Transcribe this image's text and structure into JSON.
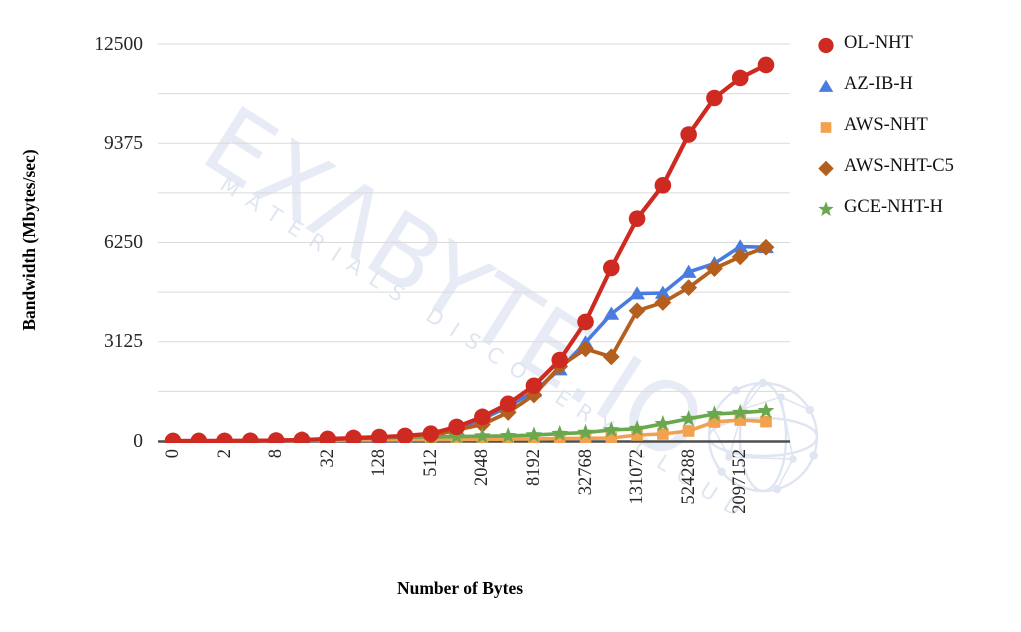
{
  "watermark": {
    "line1": "EXΛBYTE.IO",
    "line2": "MATERIALS DISCOVERY CLOUD"
  },
  "chart_data": {
    "type": "line",
    "title": "",
    "xlabel": "Number of Bytes",
    "ylabel": "Bandwidth (Mbytes/sec)",
    "x_scale": "categorical-power-of-2",
    "categories": [
      0,
      1,
      2,
      4,
      8,
      16,
      32,
      64,
      128,
      256,
      512,
      1024,
      2048,
      4096,
      8192,
      16384,
      32768,
      65536,
      131072,
      262144,
      524288,
      1048576,
      2097152,
      4194304
    ],
    "x_tick_labels": [
      "0",
      "2",
      "8",
      "32",
      "128",
      "512",
      "2048",
      "8192",
      "32768",
      "131072",
      "524288",
      "2097152"
    ],
    "x_tick_indices": [
      0,
      2,
      4,
      6,
      8,
      10,
      12,
      14,
      16,
      18,
      20,
      22
    ],
    "y_ticks": [
      0,
      3125,
      6250,
      9375,
      12500
    ],
    "y_tick_labels": [
      "0",
      "3125",
      "6250",
      "9375",
      "12500"
    ],
    "y_minor_gridline_step": 1562.5,
    "ylim": [
      0,
      12500
    ],
    "grid": true,
    "legend_position": "right",
    "colors": {
      "grid": "#dadada",
      "axis": "#4f4f4f",
      "watermark": "#e2e8f3"
    },
    "series": [
      {
        "name": "OL-NHT",
        "color": "#cf2a21",
        "marker": "circle",
        "values": [
          1,
          2,
          4,
          8,
          16,
          32,
          64,
          95,
          125,
          160,
          230,
          445,
          760,
          1170,
          1740,
          2550,
          3750,
          5450,
          7000,
          8050,
          9650,
          10800,
          11430,
          11840
        ]
      },
      {
        "name": "AZ-IB-H",
        "color": "#4a7ce0",
        "marker": "triangle",
        "values": [
          1,
          2,
          4,
          8,
          15,
          30,
          55,
          85,
          110,
          130,
          160,
          380,
          690,
          1080,
          1560,
          2250,
          3100,
          4000,
          4640,
          4660,
          5320,
          5590,
          6120,
          6100
        ]
      },
      {
        "name": "AWS-NHT",
        "color": "#f2a14e",
        "marker": "square",
        "values": [
          1,
          1,
          2,
          4,
          8,
          15,
          25,
          30,
          35,
          40,
          45,
          50,
          55,
          60,
          65,
          75,
          85,
          95,
          190,
          220,
          315,
          600,
          660,
          610
        ]
      },
      {
        "name": "AWS-NHT-C5",
        "color": "#b45f1d",
        "marker": "diamond",
        "values": [
          1,
          2,
          4,
          8,
          15,
          30,
          55,
          80,
          105,
          125,
          150,
          350,
          520,
          900,
          1450,
          2350,
          2900,
          2650,
          4100,
          4360,
          4830,
          5430,
          5800,
          6100
        ]
      },
      {
        "name": "GCE-NHT-H",
        "color": "#6aa84f",
        "marker": "star",
        "values": [
          2,
          4,
          7,
          12,
          22,
          40,
          65,
          90,
          110,
          120,
          130,
          140,
          150,
          160,
          185,
          230,
          265,
          345,
          385,
          540,
          700,
          850,
          890,
          950
        ]
      }
    ]
  }
}
